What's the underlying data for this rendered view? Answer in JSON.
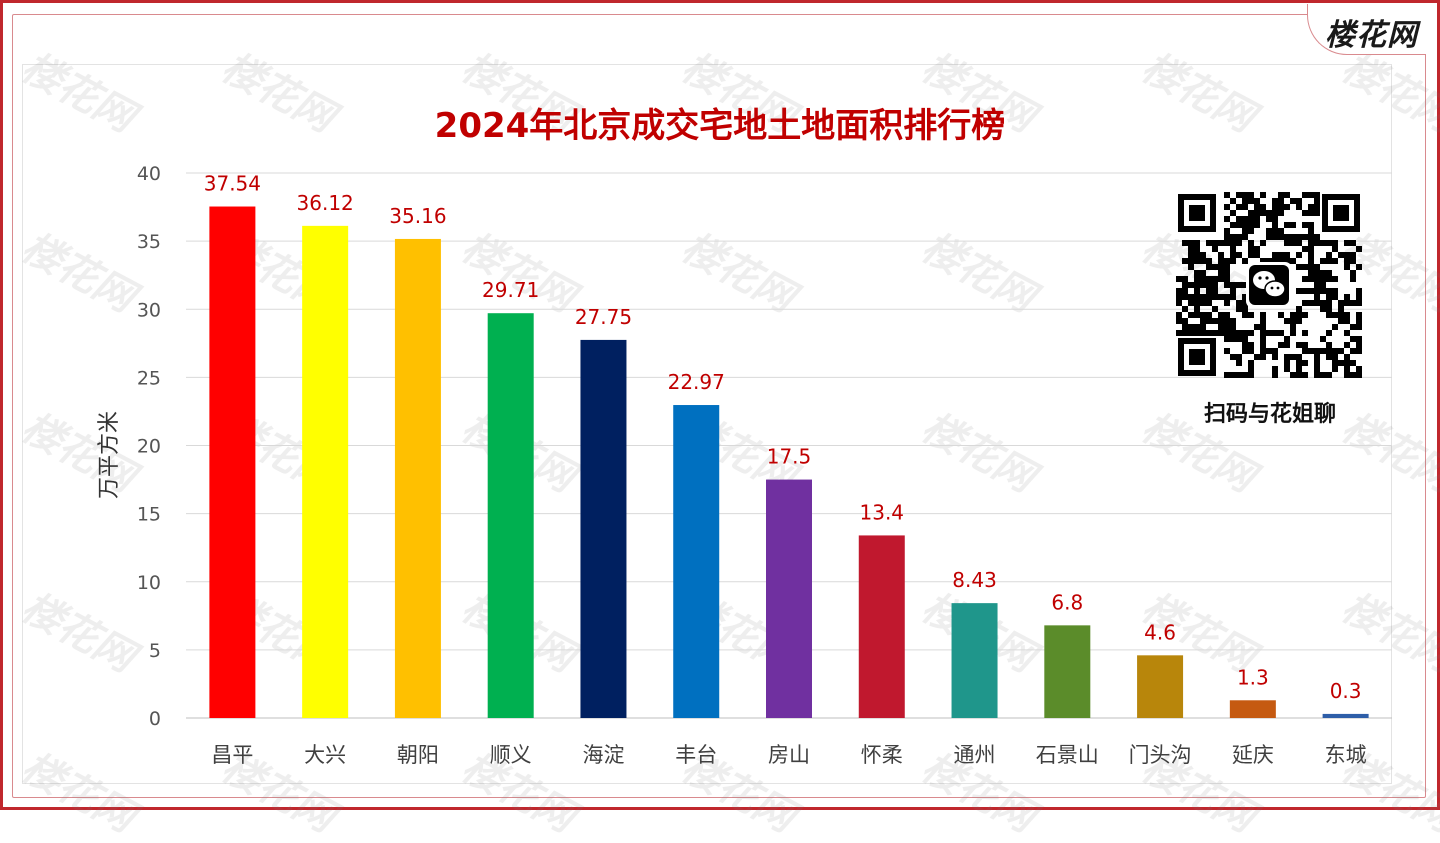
{
  "brand": {
    "logo_text": "楼花网"
  },
  "qr": {
    "caption": "扫码与花姐聊",
    "icon": "wechat-icon"
  },
  "colors": {
    "frame": "#c0272d",
    "title": "#c00000",
    "data_label": "#c00000",
    "axis_text": "#555555",
    "grid": "#d9d9d9"
  },
  "chart_data": {
    "type": "bar",
    "title": "2024年北京成交宅地土地面积排行榜",
    "xlabel": "",
    "ylabel": "万平方米",
    "ylim": [
      0,
      40
    ],
    "yticks": [
      0,
      5,
      10,
      15,
      20,
      25,
      30,
      35,
      40
    ],
    "grid": true,
    "legend": "none",
    "categories": [
      "昌平",
      "大兴",
      "朝阳",
      "顺义",
      "海淀",
      "丰台",
      "房山",
      "怀柔",
      "通州",
      "石景山",
      "门头沟",
      "延庆",
      "东城"
    ],
    "values": [
      37.54,
      36.12,
      35.16,
      29.71,
      27.75,
      22.97,
      17.5,
      13.4,
      8.43,
      6.8,
      4.6,
      1.3,
      0.3
    ],
    "data_labels": [
      "37.54",
      "36.12",
      "35.16",
      "29.71",
      "27.75",
      "22.97",
      "17.5",
      "13.4",
      "8.43",
      "6.8",
      "4.6",
      "1.3",
      "0.3"
    ],
    "bar_colors": [
      "#ff0000",
      "#ffff00",
      "#ffc000",
      "#00b050",
      "#002060",
      "#0070c0",
      "#7030a0",
      "#c0182e",
      "#1f968b",
      "#5b8c2a",
      "#b8860b",
      "#c55a11",
      "#2e5ea8"
    ]
  }
}
